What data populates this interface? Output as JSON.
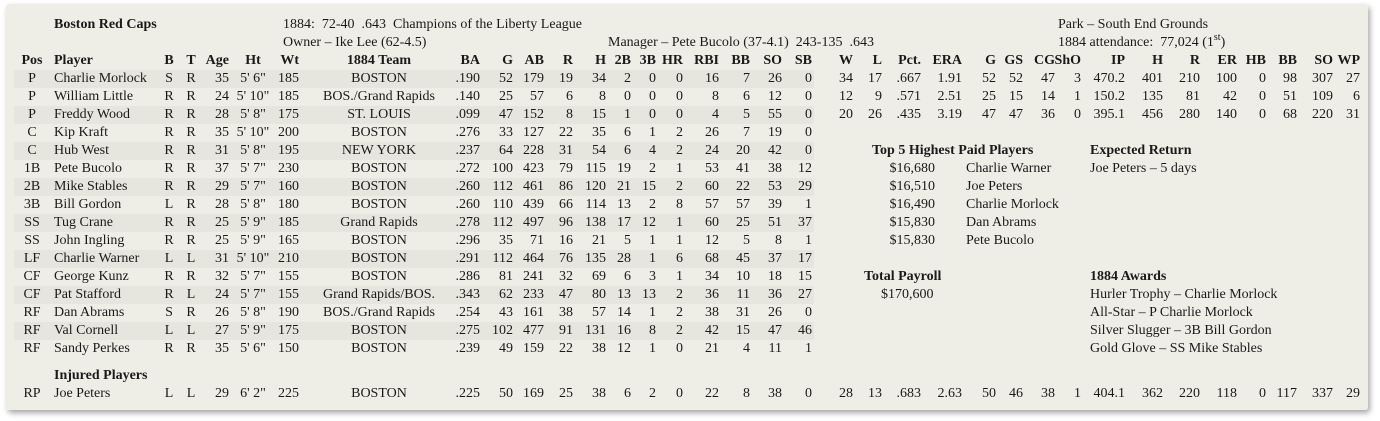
{
  "header": {
    "team": "Boston Red Caps",
    "record": "1884:  72-40  .643  Champions of the Liberty League",
    "owner": "Owner – Ike Lee (62-4.5)",
    "manager": "Manager – Pete Bucolo (37-4.1)  243-135  .643",
    "park": "Park – South End Grounds",
    "attendance": [
      "1884 attendance:  77,024 (1",
      "st",
      ")"
    ]
  },
  "table": {
    "columns": [
      "Pos",
      "Player",
      "B",
      "T",
      "Age",
      "Ht",
      "Wt",
      "1884 Team",
      "BA",
      "G",
      "AB",
      "R",
      "H",
      "2B",
      "3B",
      "HR",
      "RBI",
      "BB",
      "SO",
      "SB",
      "W",
      "L",
      "Pct.",
      "ERA",
      "G",
      "GS",
      "CG",
      "ShO",
      "IP",
      "H",
      "R",
      "ER",
      "HB",
      "BB",
      "SO",
      "WP"
    ],
    "rows": [
      [
        "P",
        "Charlie Morlock",
        "S",
        "R",
        "35",
        "5' 6\"",
        "185",
        "BOSTON",
        ".190",
        "52",
        "179",
        "19",
        "34",
        "2",
        "0",
        "0",
        "16",
        "7",
        "26",
        "0",
        "34",
        "17",
        ".667",
        "1.91",
        "52",
        "52",
        "47",
        "3",
        "470.2",
        "401",
        "210",
        "100",
        "0",
        "98",
        "307",
        "27"
      ],
      [
        "P",
        "William Little",
        "R",
        "R",
        "24",
        "5' 10\"",
        "185",
        "BOS./Grand Rapids",
        ".140",
        "25",
        "57",
        "6",
        "8",
        "0",
        "0",
        "0",
        "8",
        "6",
        "12",
        "0",
        "12",
        "9",
        ".571",
        "2.51",
        "25",
        "15",
        "14",
        "1",
        "150.2",
        "135",
        "81",
        "42",
        "0",
        "51",
        "109",
        "6"
      ],
      [
        "P",
        "Freddy Wood",
        "R",
        "R",
        "28",
        "5' 8\"",
        "175",
        "ST. LOUIS",
        ".099",
        "47",
        "152",
        "8",
        "15",
        "1",
        "0",
        "0",
        "4",
        "5",
        "55",
        "0",
        "20",
        "26",
        ".435",
        "3.19",
        "47",
        "47",
        "36",
        "0",
        "395.1",
        "456",
        "280",
        "140",
        "0",
        "68",
        "220",
        "31"
      ],
      [
        "C",
        "Kip Kraft",
        "R",
        "R",
        "35",
        "5' 10\"",
        "200",
        "BOSTON",
        ".276",
        "33",
        "127",
        "22",
        "35",
        "6",
        "1",
        "2",
        "26",
        "7",
        "19",
        "0"
      ],
      [
        "C",
        "Hub West",
        "R",
        "R",
        "31",
        "5' 8\"",
        "195",
        "NEW YORK",
        ".237",
        "64",
        "228",
        "31",
        "54",
        "6",
        "4",
        "2",
        "24",
        "20",
        "42",
        "0"
      ],
      [
        "1B",
        "Pete Bucolo",
        "R",
        "R",
        "37",
        "5' 7\"",
        "230",
        "BOSTON",
        ".272",
        "100",
        "423",
        "79",
        "115",
        "19",
        "2",
        "1",
        "53",
        "41",
        "38",
        "12"
      ],
      [
        "2B",
        "Mike Stables",
        "R",
        "R",
        "29",
        "5' 7\"",
        "160",
        "BOSTON",
        ".260",
        "112",
        "461",
        "86",
        "120",
        "21",
        "15",
        "2",
        "60",
        "22",
        "53",
        "29"
      ],
      [
        "3B",
        "Bill Gordon",
        "L",
        "R",
        "28",
        "5' 8\"",
        "180",
        "BOSTON",
        ".260",
        "110",
        "439",
        "66",
        "114",
        "13",
        "2",
        "8",
        "57",
        "57",
        "39",
        "1"
      ],
      [
        "SS",
        "Tug Crane",
        "R",
        "R",
        "25",
        "5' 9\"",
        "185",
        "Grand Rapids",
        ".278",
        "112",
        "497",
        "96",
        "138",
        "17",
        "12",
        "1",
        "60",
        "25",
        "51",
        "37"
      ],
      [
        "SS",
        "John Ingling",
        "R",
        "R",
        "25",
        "5' 9\"",
        "165",
        "BOSTON",
        ".296",
        "35",
        "71",
        "16",
        "21",
        "5",
        "1",
        "1",
        "12",
        "5",
        "8",
        "1"
      ],
      [
        "LF",
        "Charlie Warner",
        "L",
        "L",
        "31",
        "5' 10\"",
        "210",
        "BOSTON",
        ".291",
        "112",
        "464",
        "76",
        "135",
        "28",
        "1",
        "6",
        "68",
        "45",
        "37",
        "17"
      ],
      [
        "CF",
        "George Kunz",
        "R",
        "R",
        "32",
        "5' 7\"",
        "155",
        "BOSTON",
        ".286",
        "81",
        "241",
        "32",
        "69",
        "6",
        "3",
        "1",
        "34",
        "10",
        "18",
        "15"
      ],
      [
        "CF",
        "Pat Stafford",
        "R",
        "L",
        "24",
        "5' 7\"",
        "155",
        "Grand Rapids/BOS.",
        ".343",
        "62",
        "233",
        "47",
        "80",
        "13",
        "13",
        "2",
        "36",
        "11",
        "36",
        "27"
      ],
      [
        "RF",
        "Dan Abrams",
        "S",
        "R",
        "26",
        "5' 8\"",
        "190",
        "BOS./Grand Rapids",
        ".254",
        "43",
        "161",
        "38",
        "57",
        "14",
        "1",
        "2",
        "38",
        "31",
        "26",
        "0"
      ],
      [
        "RF",
        "Val Cornell",
        "L",
        "L",
        "27",
        "5' 9\"",
        "175",
        "BOSTON",
        ".275",
        "102",
        "477",
        "91",
        "131",
        "16",
        "8",
        "2",
        "42",
        "15",
        "47",
        "46"
      ],
      [
        "RF",
        "Sandy Perkes",
        "R",
        "R",
        "35",
        "5' 6\"",
        "150",
        "BOSTON",
        ".239",
        "49",
        "159",
        "22",
        "38",
        "12",
        "1",
        "0",
        "21",
        "4",
        "11",
        "1"
      ]
    ],
    "injured_title": "Injured Players",
    "injured_rows": [
      [
        "RP",
        "Joe Peters",
        "L",
        "L",
        "29",
        "6' 2\"",
        "225",
        "BOSTON",
        ".225",
        "50",
        "169",
        "25",
        "38",
        "6",
        "2",
        "0",
        "22",
        "8",
        "38",
        "0",
        "28",
        "13",
        ".683",
        "2.63",
        "50",
        "46",
        "38",
        "1",
        "404.1",
        "362",
        "220",
        "118",
        "0",
        "117",
        "337",
        "29"
      ]
    ]
  },
  "salaries": {
    "title": "Top 5 Highest Paid Players",
    "rows": [
      [
        "$16,680",
        "Charlie Warner"
      ],
      [
        "$16,510",
        "Joe Peters"
      ],
      [
        "$16,490",
        "Charlie Morlock"
      ],
      [
        "$15,830",
        "Dan Abrams"
      ],
      [
        "$15,830",
        "Pete Bucolo"
      ]
    ]
  },
  "expected_return": {
    "title": "Expected Return",
    "items": [
      "Joe Peters – 5 days"
    ]
  },
  "payroll": {
    "title": "Total Payroll",
    "value": "$170,600"
  },
  "awards": {
    "title": "1884 Awards",
    "items": [
      "Hurler Trophy – Charlie Morlock",
      "All-Star – P Charlie Morlock",
      "Silver Slugger – 3B Bill Gordon",
      "Gold Glove – SS Mike Stables"
    ]
  }
}
